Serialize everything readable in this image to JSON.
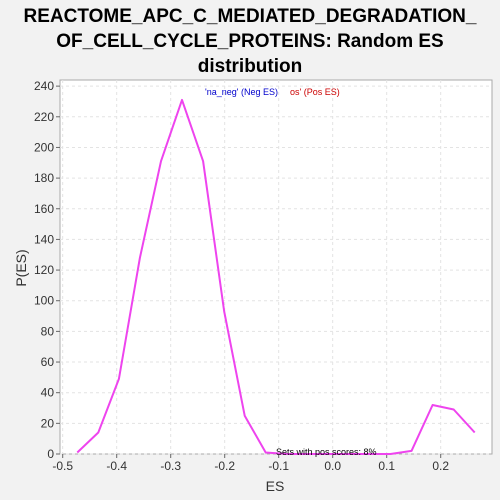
{
  "chart_data": {
    "type": "line",
    "title_lines": [
      "REACTOME_APC_C_MEDIATED_DEGRADATION_",
      "OF_CELL_CYCLE_PROTEINS: Random ES",
      "distribution"
    ],
    "xlabel": "ES",
    "ylabel": "P(ES)",
    "xlim": [
      -0.505,
      0.295
    ],
    "ylim": [
      0,
      244
    ],
    "x_ticks": [
      -0.5,
      -0.4,
      -0.3,
      -0.2,
      -0.1,
      0.0,
      0.1,
      0.2
    ],
    "x_tick_labels": [
      "-0.5",
      "-0.4",
      "-0.3",
      "-0.2",
      "-0.1",
      "0.0",
      "0.1",
      "0.2"
    ],
    "y_ticks": [
      0,
      20,
      40,
      60,
      80,
      100,
      120,
      140,
      160,
      180,
      200,
      220,
      240
    ],
    "y_tick_labels": [
      "0",
      "20",
      "40",
      "60",
      "80",
      "100",
      "120",
      "140",
      "160",
      "180",
      "200",
      "220",
      "240"
    ],
    "grid": true,
    "legend_parts": [
      {
        "text": "'na_neg' (Neg ES)",
        "color": "#0000cc"
      },
      {
        "text": "os' (Pos ES)",
        "color": "#cc0000"
      }
    ],
    "annotation": "Sets with pos scores: 8%",
    "series": [
      {
        "color": "#ee44ee",
        "x": [
          -0.473,
          -0.434,
          -0.396,
          -0.357,
          -0.318,
          -0.279,
          -0.24,
          -0.201,
          -0.163,
          -0.124,
          -0.085,
          0.107,
          0.146,
          0.185,
          0.224,
          0.263
        ],
        "y": [
          1,
          14,
          49,
          128,
          191,
          231,
          191,
          93,
          25,
          1,
          0,
          0,
          2,
          32,
          29,
          14
        ]
      }
    ]
  }
}
